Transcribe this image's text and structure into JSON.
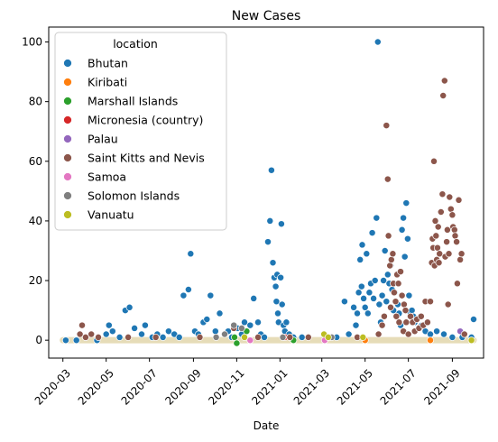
{
  "chart_data": {
    "type": "scatter",
    "title": "New Cases",
    "xlabel": "Date",
    "ylabel": "",
    "xlim": [
      "2020-02-10",
      "2021-10-15"
    ],
    "ylim": [
      -6,
      105
    ],
    "x_ticks": [
      "2020-03-01",
      "2020-05-01",
      "2020-07-01",
      "2020-09-01",
      "2020-11-01",
      "2021-01-01",
      "2021-03-01",
      "2021-05-01",
      "2021-07-01",
      "2021-09-01"
    ],
    "x_tick_labels": [
      "2020-03",
      "2020-05",
      "2020-07",
      "2020-09",
      "2020-11",
      "2021-01",
      "2021-03",
      "2021-05",
      "2021-07",
      "2021-09"
    ],
    "y_ticks": [
      0,
      20,
      40,
      60,
      80,
      100
    ],
    "y_tick_labels": [
      "0",
      "20",
      "40",
      "60",
      "80",
      "100"
    ],
    "grid": false,
    "legend": {
      "title": "location",
      "placement": "top-left"
    },
    "series": [
      {
        "name": "Bhutan",
        "color": "#1f77b4",
        "points": [
          [
            "2020-03-05",
            0
          ],
          [
            "2020-03-20",
            0
          ],
          [
            "2020-04-02",
            1
          ],
          [
            "2020-04-18",
            0
          ],
          [
            "2020-05-01",
            2
          ],
          [
            "2020-05-05",
            5
          ],
          [
            "2020-05-10",
            3
          ],
          [
            "2020-05-20",
            1
          ],
          [
            "2020-05-28",
            10
          ],
          [
            "2020-06-03",
            11
          ],
          [
            "2020-06-10",
            4
          ],
          [
            "2020-06-20",
            2
          ],
          [
            "2020-06-25",
            5
          ],
          [
            "2020-07-05",
            1
          ],
          [
            "2020-07-12",
            2
          ],
          [
            "2020-07-20",
            1
          ],
          [
            "2020-07-28",
            3
          ],
          [
            "2020-08-05",
            2
          ],
          [
            "2020-08-12",
            1
          ],
          [
            "2020-08-18",
            15
          ],
          [
            "2020-08-25",
            17
          ],
          [
            "2020-08-28",
            29
          ],
          [
            "2020-09-03",
            3
          ],
          [
            "2020-09-08",
            2
          ],
          [
            "2020-09-15",
            6
          ],
          [
            "2020-09-20",
            7
          ],
          [
            "2020-09-25",
            15
          ],
          [
            "2020-10-02",
            3
          ],
          [
            "2020-10-08",
            9
          ],
          [
            "2020-10-15",
            2
          ],
          [
            "2020-10-20",
            3
          ],
          [
            "2020-10-25",
            1
          ],
          [
            "2020-11-02",
            4
          ],
          [
            "2020-11-08",
            2
          ],
          [
            "2020-11-12",
            6
          ],
          [
            "2020-11-20",
            5
          ],
          [
            "2020-11-25",
            14
          ],
          [
            "2020-12-01",
            6
          ],
          [
            "2020-12-05",
            2
          ],
          [
            "2020-12-10",
            1
          ],
          [
            "2020-12-15",
            33
          ],
          [
            "2020-12-18",
            40
          ],
          [
            "2020-12-20",
            57
          ],
          [
            "2020-12-22",
            26
          ],
          [
            "2020-12-24",
            21
          ],
          [
            "2020-12-26",
            18
          ],
          [
            "2020-12-27",
            13
          ],
          [
            "2020-12-28",
            22
          ],
          [
            "2020-12-29",
            9
          ],
          [
            "2020-12-30",
            6
          ],
          [
            "2021-01-02",
            21
          ],
          [
            "2021-01-03",
            39
          ],
          [
            "2021-01-04",
            12
          ],
          [
            "2021-01-06",
            5
          ],
          [
            "2021-01-08",
            3
          ],
          [
            "2021-01-10",
            6
          ],
          [
            "2021-01-14",
            2
          ],
          [
            "2021-01-20",
            1
          ],
          [
            "2021-02-01",
            1
          ],
          [
            "2021-03-10",
            1
          ],
          [
            "2021-03-22",
            1
          ],
          [
            "2021-04-02",
            13
          ],
          [
            "2021-04-08",
            2
          ],
          [
            "2021-04-15",
            11
          ],
          [
            "2021-04-18",
            5
          ],
          [
            "2021-04-20",
            9
          ],
          [
            "2021-04-22",
            16
          ],
          [
            "2021-04-24",
            27
          ],
          [
            "2021-04-26",
            18
          ],
          [
            "2021-04-27",
            32
          ],
          [
            "2021-04-29",
            14
          ],
          [
            "2021-05-01",
            11
          ],
          [
            "2021-05-03",
            29
          ],
          [
            "2021-05-05",
            9
          ],
          [
            "2021-05-07",
            16
          ],
          [
            "2021-05-09",
            19
          ],
          [
            "2021-05-11",
            36
          ],
          [
            "2021-05-13",
            14
          ],
          [
            "2021-05-15",
            20
          ],
          [
            "2021-05-17",
            41
          ],
          [
            "2021-05-19",
            100
          ],
          [
            "2021-05-21",
            12
          ],
          [
            "2021-05-23",
            6
          ],
          [
            "2021-05-25",
            15
          ],
          [
            "2021-05-27",
            20
          ],
          [
            "2021-05-29",
            30
          ],
          [
            "2021-05-31",
            13
          ],
          [
            "2021-06-02",
            22
          ],
          [
            "2021-06-04",
            19
          ],
          [
            "2021-06-06",
            25
          ],
          [
            "2021-06-08",
            17
          ],
          [
            "2021-06-10",
            10
          ],
          [
            "2021-06-12",
            16
          ],
          [
            "2021-06-14",
            8
          ],
          [
            "2021-06-16",
            12
          ],
          [
            "2021-06-18",
            9
          ],
          [
            "2021-06-20",
            5
          ],
          [
            "2021-06-22",
            37
          ],
          [
            "2021-06-24",
            41
          ],
          [
            "2021-06-26",
            28
          ],
          [
            "2021-06-28",
            46
          ],
          [
            "2021-06-30",
            34
          ],
          [
            "2021-07-02",
            15
          ],
          [
            "2021-07-04",
            9
          ],
          [
            "2021-07-06",
            10
          ],
          [
            "2021-07-08",
            8
          ],
          [
            "2021-07-10",
            6
          ],
          [
            "2021-07-15",
            4
          ],
          [
            "2021-07-20",
            5
          ],
          [
            "2021-07-25",
            3
          ],
          [
            "2021-08-01",
            2
          ],
          [
            "2021-08-10",
            3
          ],
          [
            "2021-08-20",
            2
          ],
          [
            "2021-09-01",
            1
          ],
          [
            "2021-09-15",
            1
          ],
          [
            "2021-09-28",
            1
          ],
          [
            "2021-10-01",
            7
          ]
        ]
      },
      {
        "name": "Kiribati",
        "color": "#ff7f0e",
        "points": [
          [
            "2021-05-01",
            0
          ],
          [
            "2021-08-01",
            0
          ]
        ]
      },
      {
        "name": "Marshall Islands",
        "color": "#2ca02c",
        "points": [
          [
            "2020-10-29",
            1
          ],
          [
            "2020-11-01",
            -1
          ],
          [
            "2020-11-15",
            3
          ],
          [
            "2021-01-20",
            0
          ]
        ]
      },
      {
        "name": "Micronesia (country)",
        "color": "#d62728",
        "points": [
          [
            "2021-01-08",
            1
          ]
        ]
      },
      {
        "name": "Palau",
        "color": "#9467bd",
        "points": [
          [
            "2021-09-12",
            3
          ]
        ]
      },
      {
        "name": "Saint Kitts and Nevis",
        "color": "#8c564b",
        "points": [
          [
            "2020-03-25",
            2
          ],
          [
            "2020-03-28",
            5
          ],
          [
            "2020-04-02",
            1
          ],
          [
            "2020-04-10",
            2
          ],
          [
            "2020-04-20",
            1
          ],
          [
            "2020-06-01",
            1
          ],
          [
            "2020-07-10",
            1
          ],
          [
            "2020-09-10",
            1
          ],
          [
            "2020-10-28",
            4
          ],
          [
            "2020-12-01",
            1
          ],
          [
            "2021-01-15",
            1
          ],
          [
            "2021-02-10",
            1
          ],
          [
            "2021-04-20",
            1
          ],
          [
            "2021-05-20",
            2
          ],
          [
            "2021-05-25",
            5
          ],
          [
            "2021-05-28",
            8
          ],
          [
            "2021-05-31",
            72
          ],
          [
            "2021-06-02",
            54
          ],
          [
            "2021-06-03",
            35
          ],
          [
            "2021-06-05",
            25
          ],
          [
            "2021-06-06",
            11
          ],
          [
            "2021-06-07",
            27
          ],
          [
            "2021-06-09",
            29
          ],
          [
            "2021-06-10",
            19
          ],
          [
            "2021-06-11",
            16
          ],
          [
            "2021-06-13",
            13
          ],
          [
            "2021-06-14",
            8
          ],
          [
            "2021-06-15",
            22
          ],
          [
            "2021-06-17",
            19
          ],
          [
            "2021-06-18",
            6
          ],
          [
            "2021-06-20",
            23
          ],
          [
            "2021-06-22",
            15
          ],
          [
            "2021-06-24",
            3
          ],
          [
            "2021-06-25",
            12
          ],
          [
            "2021-06-27",
            10
          ],
          [
            "2021-06-28",
            6
          ],
          [
            "2021-07-01",
            2
          ],
          [
            "2021-07-04",
            8
          ],
          [
            "2021-07-07",
            6
          ],
          [
            "2021-07-10",
            3
          ],
          [
            "2021-07-13",
            7
          ],
          [
            "2021-07-16",
            4
          ],
          [
            "2021-07-19",
            8
          ],
          [
            "2021-07-22",
            5
          ],
          [
            "2021-07-25",
            13
          ],
          [
            "2021-07-28",
            6
          ],
          [
            "2021-08-01",
            13
          ],
          [
            "2021-08-03",
            26
          ],
          [
            "2021-08-04",
            34
          ],
          [
            "2021-08-05",
            31
          ],
          [
            "2021-08-06",
            60
          ],
          [
            "2021-08-07",
            25
          ],
          [
            "2021-08-08",
            40
          ],
          [
            "2021-08-09",
            35
          ],
          [
            "2021-08-10",
            27
          ],
          [
            "2021-08-11",
            31
          ],
          [
            "2021-08-12",
            38
          ],
          [
            "2021-08-13",
            26
          ],
          [
            "2021-08-14",
            29
          ],
          [
            "2021-08-16",
            43
          ],
          [
            "2021-08-18",
            49
          ],
          [
            "2021-08-19",
            82
          ],
          [
            "2021-08-21",
            87
          ],
          [
            "2021-08-22",
            28
          ],
          [
            "2021-08-24",
            33
          ],
          [
            "2021-08-25",
            37
          ],
          [
            "2021-08-26",
            12
          ],
          [
            "2021-08-27",
            29
          ],
          [
            "2021-08-28",
            48
          ],
          [
            "2021-08-30",
            44
          ],
          [
            "2021-09-01",
            42
          ],
          [
            "2021-09-02",
            38
          ],
          [
            "2021-09-04",
            37
          ],
          [
            "2021-09-05",
            35
          ],
          [
            "2021-09-07",
            33
          ],
          [
            "2021-09-08",
            19
          ],
          [
            "2021-09-10",
            47
          ],
          [
            "2021-09-12",
            27
          ],
          [
            "2021-09-14",
            29
          ],
          [
            "2021-09-18",
            2
          ]
        ]
      },
      {
        "name": "Samoa",
        "color": "#e377c2",
        "points": [
          [
            "2020-11-20",
            0
          ],
          [
            "2021-03-05",
            0
          ]
        ]
      },
      {
        "name": "Solomon Islands",
        "color": "#7f7f7f",
        "points": [
          [
            "2020-10-03",
            1
          ],
          [
            "2020-10-15",
            2
          ],
          [
            "2020-10-28",
            5
          ],
          [
            "2020-11-08",
            4
          ],
          [
            "2021-01-05",
            1
          ],
          [
            "2021-03-15",
            1
          ]
        ]
      },
      {
        "name": "Vanuatu",
        "color": "#bcbd22",
        "points": [
          [
            "2020-11-12",
            1
          ],
          [
            "2021-03-04",
            2
          ],
          [
            "2021-03-10",
            1
          ],
          [
            "2021-04-28",
            1
          ],
          [
            "2021-09-28",
            0
          ]
        ]
      }
    ],
    "zero_baseline": {
      "start": "2020-03-01",
      "end": "2021-10-01"
    }
  }
}
